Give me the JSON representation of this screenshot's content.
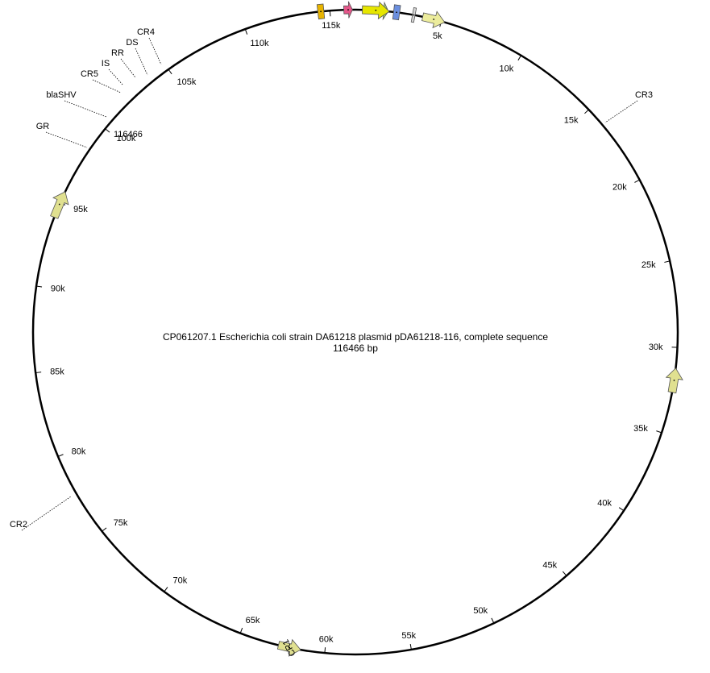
{
  "title": "CP061207.1 Escherichia coli strain DA61218 plasmid pDA61218-116, complete sequence",
  "length_label": "116466 bp",
  "sequence_length": 116466,
  "origin_label": "116466",
  "ticks": [
    {
      "pos": 5000,
      "label": "5k"
    },
    {
      "pos": 10000,
      "label": "10k"
    },
    {
      "pos": 15000,
      "label": "15k"
    },
    {
      "pos": 20000,
      "label": "20k"
    },
    {
      "pos": 25000,
      "label": "25k"
    },
    {
      "pos": 30000,
      "label": "30k"
    },
    {
      "pos": 35000,
      "label": "35k"
    },
    {
      "pos": 40000,
      "label": "40k"
    },
    {
      "pos": 45000,
      "label": "45k"
    },
    {
      "pos": 50000,
      "label": "50k"
    },
    {
      "pos": 55000,
      "label": "55k"
    },
    {
      "pos": 60000,
      "label": "60k"
    },
    {
      "pos": 65000,
      "label": "65k"
    },
    {
      "pos": 70000,
      "label": "70k"
    },
    {
      "pos": 75000,
      "label": "75k"
    },
    {
      "pos": 80000,
      "label": "80k"
    },
    {
      "pos": 85000,
      "label": "85k"
    },
    {
      "pos": 90000,
      "label": "90k"
    },
    {
      "pos": 95000,
      "label": "95k"
    },
    {
      "pos": 100000,
      "label": "100k"
    },
    {
      "pos": 105000,
      "label": "105k"
    },
    {
      "pos": 110000,
      "label": "110k"
    },
    {
      "pos": 115000,
      "label": "115k"
    }
  ],
  "features": [
    {
      "name": "CR4",
      "start": 3900,
      "end": 5200,
      "strand": 1,
      "color": "#ecec9c",
      "label_inside": false
    },
    {
      "name": "DS",
      "start": 3300,
      "end": 3450,
      "strand": 0,
      "color": "#d8d8d8",
      "label_inside": false
    },
    {
      "name": "RR",
      "start": 2200,
      "end": 2550,
      "strand": 0,
      "color": "#6b8fe0",
      "label_inside": false
    },
    {
      "name": "IS",
      "start": 1300,
      "end": 1900,
      "strand": 1,
      "color": "#a8d880",
      "label_inside": false
    },
    {
      "name": "CR5",
      "start": 400,
      "end": 1950,
      "strand": 1,
      "color": "#e6e600",
      "label_inside": false
    },
    {
      "name": "blaSHV",
      "start": 115800,
      "end": 116300,
      "strand": 1,
      "color": "#e4578a",
      "label_inside": false
    },
    {
      "name": "GR",
      "start": 114300,
      "end": 114650,
      "strand": 0,
      "color": "#e8b400",
      "label_inside": false
    },
    {
      "name": "CR3",
      "start": 31200,
      "end": 32600,
      "strand": -1,
      "color": "#e0e090",
      "label_inside": false
    },
    {
      "name": "CR1",
      "start": 61400,
      "end": 62700,
      "strand": -1,
      "color": "#e0e090",
      "label_inside": true
    },
    {
      "name": "CR2",
      "start": 94100,
      "end": 95700,
      "strand": 1,
      "color": "#e0e090",
      "label_inside": false
    }
  ]
}
